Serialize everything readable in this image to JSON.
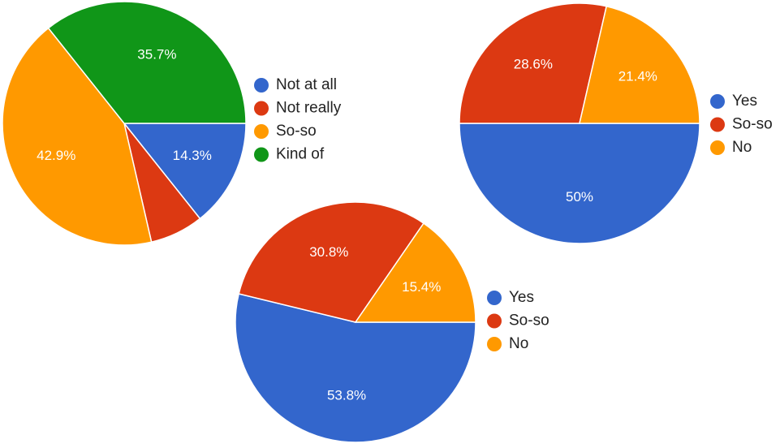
{
  "chart_data": [
    {
      "type": "pie",
      "categories": [
        "Not at all",
        "Not really",
        "So-so",
        "Kind of"
      ],
      "values": [
        14.3,
        7.1,
        42.9,
        35.7
      ],
      "value_labels": [
        "14.3%",
        null,
        "42.9%",
        "35.7%"
      ],
      "colors": [
        "#3366cc",
        "#dc3912",
        "#ff9900",
        "#109618"
      ]
    },
    {
      "type": "pie",
      "categories": [
        "Yes",
        "So-so",
        "No"
      ],
      "values": [
        50,
        28.6,
        21.4
      ],
      "value_labels": [
        "50%",
        "28.6%",
        "21.4%"
      ],
      "colors": [
        "#3366cc",
        "#dc3912",
        "#ff9900"
      ]
    },
    {
      "type": "pie",
      "categories": [
        "Yes",
        "So-so",
        "No"
      ],
      "values": [
        53.8,
        30.8,
        15.4
      ],
      "value_labels": [
        "53.8%",
        "30.8%",
        "15.4%"
      ],
      "colors": [
        "#3366cc",
        "#dc3912",
        "#ff9900"
      ]
    }
  ]
}
